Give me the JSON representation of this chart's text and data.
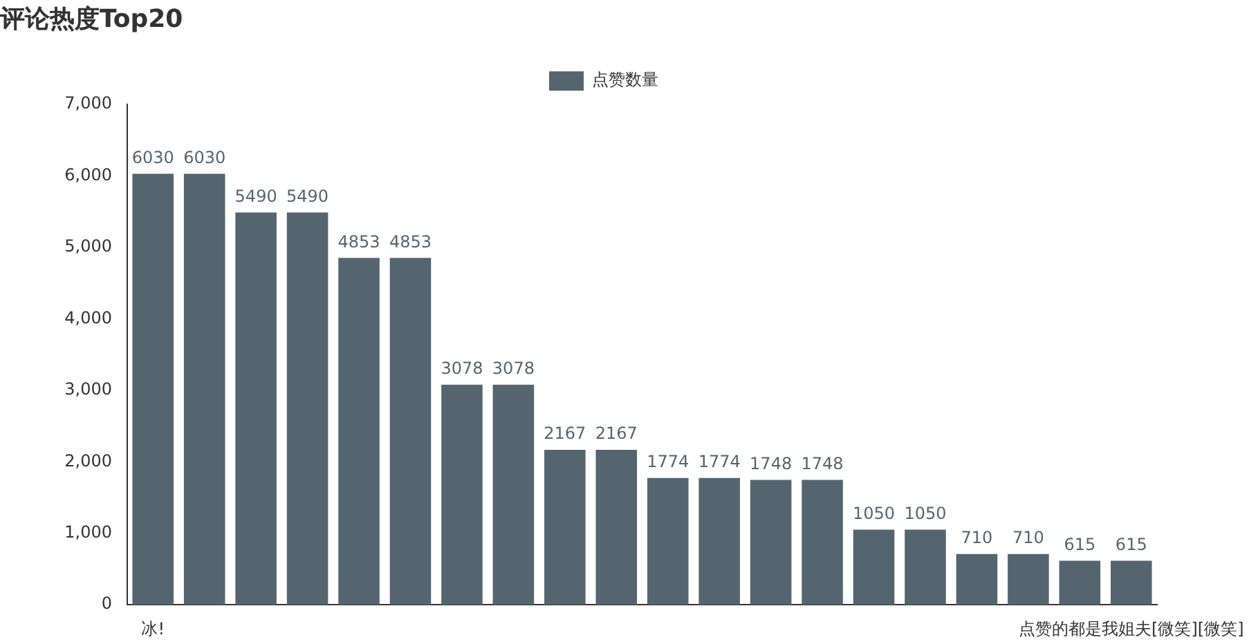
{
  "chart_data": {
    "type": "bar",
    "title": "评论热度Top20",
    "categories": [
      "冰!",
      null,
      null,
      null,
      null,
      null,
      null,
      null,
      null,
      null,
      null,
      null,
      null,
      null,
      null,
      null,
      null,
      null,
      null,
      "点赞的都是我姐夫[微笑][微笑]"
    ],
    "series": [
      {
        "name": "点赞数量",
        "color": "#546570",
        "values": [
          6030,
          6030,
          5490,
          5490,
          4853,
          4853,
          3078,
          3078,
          2167,
          2167,
          1774,
          1774,
          1748,
          1748,
          1050,
          1050,
          710,
          710,
          615,
          615
        ]
      }
    ],
    "ylim": [
      0,
      7000
    ],
    "yticks": [
      {
        "value": 0,
        "label": "0"
      },
      {
        "value": 1000,
        "label": "1,000"
      },
      {
        "value": 2000,
        "label": "2,000"
      },
      {
        "value": 3000,
        "label": "3,000"
      },
      {
        "value": 4000,
        "label": "4,000"
      },
      {
        "value": 5000,
        "label": "5,000"
      },
      {
        "value": 6000,
        "label": "6,000"
      },
      {
        "value": 7000,
        "label": "7,000"
      }
    ],
    "grid": false,
    "legend": "top",
    "data_labels": true
  }
}
